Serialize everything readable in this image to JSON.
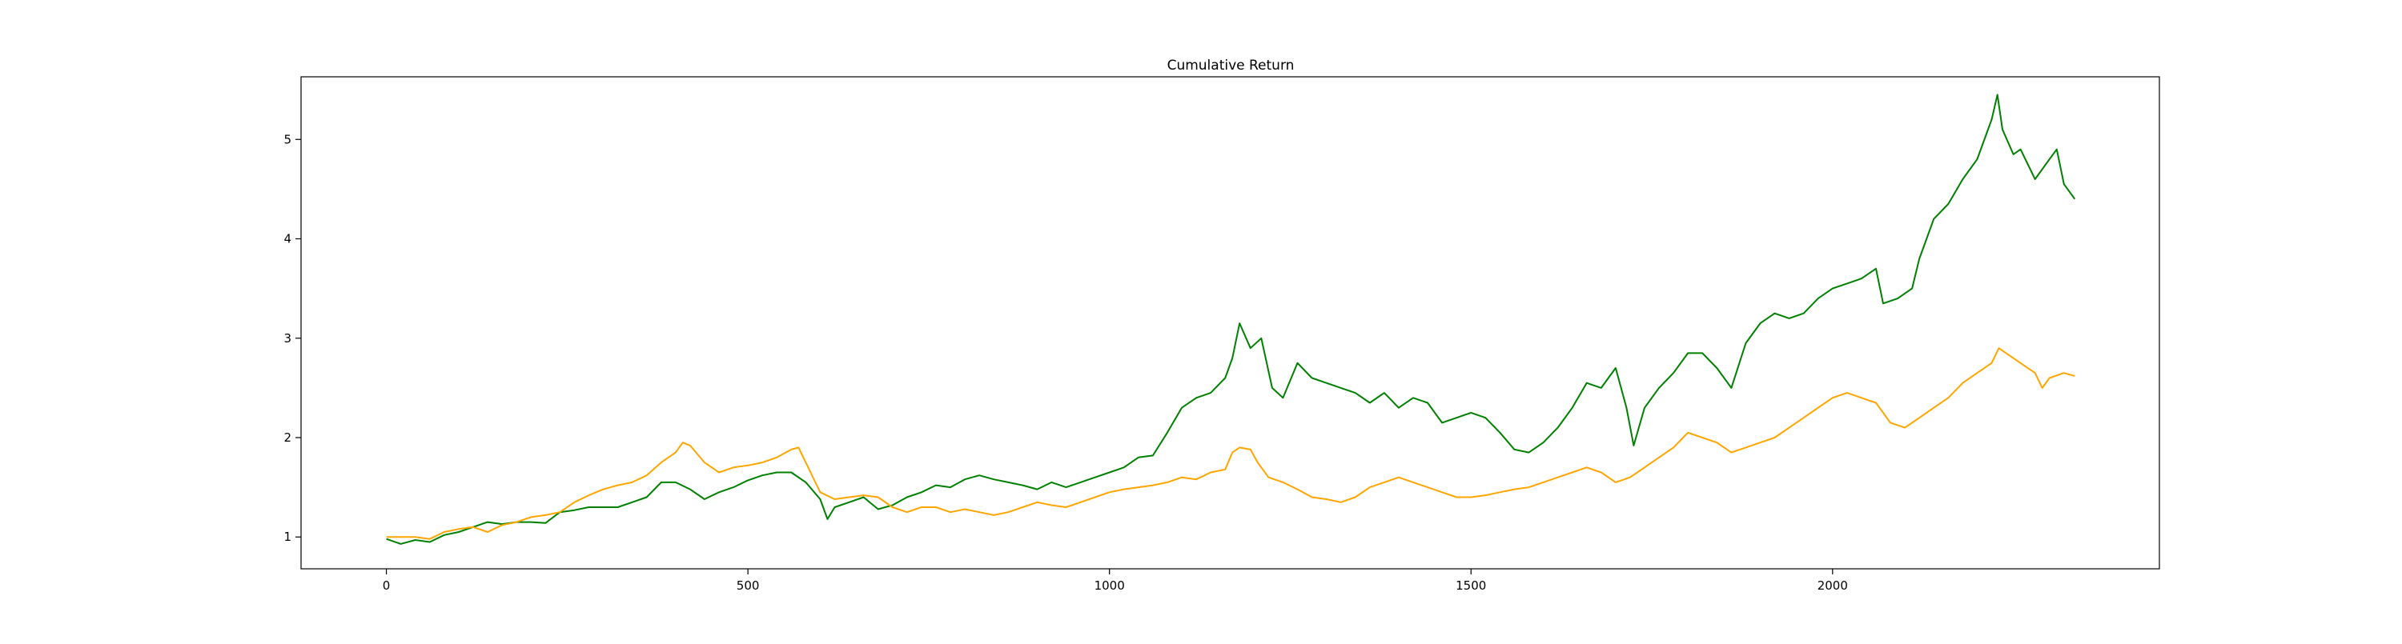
{
  "chart_data": {
    "type": "line",
    "title": "Cumulative Return",
    "xlabel": "",
    "ylabel": "",
    "xlim": [
      -118,
      2452
    ],
    "ylim": [
      0.68,
      5.63
    ],
    "xticks": [
      0,
      500,
      1000,
      1500,
      2000
    ],
    "yticks": [
      1,
      2,
      3,
      4,
      5
    ],
    "grid": false,
    "legend": "none",
    "series": [
      {
        "color": "#008000",
        "points": [
          [
            0,
            0.98
          ],
          [
            20,
            0.93
          ],
          [
            40,
            0.97
          ],
          [
            60,
            0.95
          ],
          [
            80,
            1.02
          ],
          [
            100,
            1.05
          ],
          [
            120,
            1.1
          ],
          [
            140,
            1.15
          ],
          [
            160,
            1.13
          ],
          [
            180,
            1.15
          ],
          [
            200,
            1.15
          ],
          [
            220,
            1.14
          ],
          [
            240,
            1.25
          ],
          [
            260,
            1.27
          ],
          [
            280,
            1.3
          ],
          [
            300,
            1.3
          ],
          [
            320,
            1.3
          ],
          [
            340,
            1.35
          ],
          [
            360,
            1.4
          ],
          [
            380,
            1.55
          ],
          [
            400,
            1.55
          ],
          [
            420,
            1.48
          ],
          [
            440,
            1.38
          ],
          [
            460,
            1.45
          ],
          [
            480,
            1.5
          ],
          [
            500,
            1.57
          ],
          [
            520,
            1.62
          ],
          [
            540,
            1.65
          ],
          [
            560,
            1.65
          ],
          [
            580,
            1.55
          ],
          [
            600,
            1.38
          ],
          [
            610,
            1.18
          ],
          [
            620,
            1.3
          ],
          [
            640,
            1.35
          ],
          [
            660,
            1.4
          ],
          [
            680,
            1.28
          ],
          [
            700,
            1.32
          ],
          [
            720,
            1.4
          ],
          [
            740,
            1.45
          ],
          [
            760,
            1.52
          ],
          [
            780,
            1.5
          ],
          [
            800,
            1.58
          ],
          [
            820,
            1.62
          ],
          [
            840,
            1.58
          ],
          [
            860,
            1.55
          ],
          [
            880,
            1.52
          ],
          [
            900,
            1.48
          ],
          [
            920,
            1.55
          ],
          [
            940,
            1.5
          ],
          [
            960,
            1.55
          ],
          [
            980,
            1.6
          ],
          [
            1000,
            1.65
          ],
          [
            1020,
            1.7
          ],
          [
            1040,
            1.8
          ],
          [
            1060,
            1.82
          ],
          [
            1080,
            2.05
          ],
          [
            1100,
            2.3
          ],
          [
            1120,
            2.4
          ],
          [
            1140,
            2.45
          ],
          [
            1160,
            2.6
          ],
          [
            1170,
            2.8
          ],
          [
            1180,
            3.15
          ],
          [
            1195,
            2.9
          ],
          [
            1210,
            3.0
          ],
          [
            1225,
            2.5
          ],
          [
            1240,
            2.4
          ],
          [
            1260,
            2.75
          ],
          [
            1280,
            2.6
          ],
          [
            1300,
            2.55
          ],
          [
            1320,
            2.5
          ],
          [
            1340,
            2.45
          ],
          [
            1360,
            2.35
          ],
          [
            1380,
            2.45
          ],
          [
            1400,
            2.3
          ],
          [
            1420,
            2.4
          ],
          [
            1440,
            2.35
          ],
          [
            1460,
            2.15
          ],
          [
            1480,
            2.2
          ],
          [
            1500,
            2.25
          ],
          [
            1520,
            2.2
          ],
          [
            1540,
            2.05
          ],
          [
            1560,
            1.88
          ],
          [
            1580,
            1.85
          ],
          [
            1600,
            1.95
          ],
          [
            1620,
            2.1
          ],
          [
            1640,
            2.3
          ],
          [
            1660,
            2.55
          ],
          [
            1680,
            2.5
          ],
          [
            1700,
            2.7
          ],
          [
            1715,
            2.3
          ],
          [
            1725,
            1.92
          ],
          [
            1740,
            2.3
          ],
          [
            1760,
            2.5
          ],
          [
            1780,
            2.65
          ],
          [
            1800,
            2.85
          ],
          [
            1820,
            2.85
          ],
          [
            1840,
            2.7
          ],
          [
            1860,
            2.5
          ],
          [
            1880,
            2.95
          ],
          [
            1900,
            3.15
          ],
          [
            1920,
            3.25
          ],
          [
            1940,
            3.2
          ],
          [
            1960,
            3.25
          ],
          [
            1980,
            3.4
          ],
          [
            2000,
            3.5
          ],
          [
            2020,
            3.55
          ],
          [
            2040,
            3.6
          ],
          [
            2060,
            3.7
          ],
          [
            2070,
            3.35
          ],
          [
            2090,
            3.4
          ],
          [
            2110,
            3.5
          ],
          [
            2120,
            3.8
          ],
          [
            2140,
            4.2
          ],
          [
            2160,
            4.35
          ],
          [
            2180,
            4.6
          ],
          [
            2200,
            4.8
          ],
          [
            2220,
            5.2
          ],
          [
            2228,
            5.45
          ],
          [
            2235,
            5.1
          ],
          [
            2250,
            4.85
          ],
          [
            2260,
            4.9
          ],
          [
            2280,
            4.6
          ],
          [
            2300,
            4.8
          ],
          [
            2310,
            4.9
          ],
          [
            2320,
            4.55
          ],
          [
            2330,
            4.45
          ],
          [
            2335,
            4.4
          ]
        ]
      },
      {
        "color": "#ffa500",
        "points": [
          [
            0,
            1.0
          ],
          [
            20,
            1.0
          ],
          [
            40,
            1.0
          ],
          [
            60,
            0.98
          ],
          [
            80,
            1.05
          ],
          [
            100,
            1.08
          ],
          [
            120,
            1.1
          ],
          [
            140,
            1.05
          ],
          [
            160,
            1.12
          ],
          [
            180,
            1.15
          ],
          [
            200,
            1.2
          ],
          [
            220,
            1.22
          ],
          [
            240,
            1.25
          ],
          [
            260,
            1.35
          ],
          [
            280,
            1.42
          ],
          [
            300,
            1.48
          ],
          [
            320,
            1.52
          ],
          [
            340,
            1.55
          ],
          [
            360,
            1.62
          ],
          [
            380,
            1.75
          ],
          [
            400,
            1.85
          ],
          [
            410,
            1.95
          ],
          [
            420,
            1.92
          ],
          [
            440,
            1.75
          ],
          [
            460,
            1.65
          ],
          [
            480,
            1.7
          ],
          [
            500,
            1.72
          ],
          [
            520,
            1.75
          ],
          [
            540,
            1.8
          ],
          [
            560,
            1.88
          ],
          [
            570,
            1.9
          ],
          [
            580,
            1.75
          ],
          [
            600,
            1.45
          ],
          [
            620,
            1.38
          ],
          [
            640,
            1.4
          ],
          [
            660,
            1.42
          ],
          [
            680,
            1.4
          ],
          [
            700,
            1.3
          ],
          [
            720,
            1.25
          ],
          [
            740,
            1.3
          ],
          [
            760,
            1.3
          ],
          [
            780,
            1.25
          ],
          [
            800,
            1.28
          ],
          [
            820,
            1.25
          ],
          [
            840,
            1.22
          ],
          [
            860,
            1.25
          ],
          [
            880,
            1.3
          ],
          [
            900,
            1.35
          ],
          [
            920,
            1.32
          ],
          [
            940,
            1.3
          ],
          [
            960,
            1.35
          ],
          [
            980,
            1.4
          ],
          [
            1000,
            1.45
          ],
          [
            1020,
            1.48
          ],
          [
            1040,
            1.5
          ],
          [
            1060,
            1.52
          ],
          [
            1080,
            1.55
          ],
          [
            1100,
            1.6
          ],
          [
            1120,
            1.58
          ],
          [
            1140,
            1.65
          ],
          [
            1160,
            1.68
          ],
          [
            1170,
            1.85
          ],
          [
            1180,
            1.9
          ],
          [
            1195,
            1.88
          ],
          [
            1205,
            1.75
          ],
          [
            1220,
            1.6
          ],
          [
            1240,
            1.55
          ],
          [
            1260,
            1.48
          ],
          [
            1280,
            1.4
          ],
          [
            1300,
            1.38
          ],
          [
            1320,
            1.35
          ],
          [
            1340,
            1.4
          ],
          [
            1360,
            1.5
          ],
          [
            1380,
            1.55
          ],
          [
            1400,
            1.6
          ],
          [
            1420,
            1.55
          ],
          [
            1440,
            1.5
          ],
          [
            1460,
            1.45
          ],
          [
            1480,
            1.4
          ],
          [
            1500,
            1.4
          ],
          [
            1520,
            1.42
          ],
          [
            1540,
            1.45
          ],
          [
            1560,
            1.48
          ],
          [
            1580,
            1.5
          ],
          [
            1600,
            1.55
          ],
          [
            1620,
            1.6
          ],
          [
            1640,
            1.65
          ],
          [
            1660,
            1.7
          ],
          [
            1680,
            1.65
          ],
          [
            1700,
            1.55
          ],
          [
            1720,
            1.6
          ],
          [
            1740,
            1.7
          ],
          [
            1760,
            1.8
          ],
          [
            1780,
            1.9
          ],
          [
            1800,
            2.05
          ],
          [
            1820,
            2.0
          ],
          [
            1840,
            1.95
          ],
          [
            1860,
            1.85
          ],
          [
            1880,
            1.9
          ],
          [
            1900,
            1.95
          ],
          [
            1920,
            2.0
          ],
          [
            1940,
            2.1
          ],
          [
            1960,
            2.2
          ],
          [
            1980,
            2.3
          ],
          [
            2000,
            2.4
          ],
          [
            2020,
            2.45
          ],
          [
            2040,
            2.4
          ],
          [
            2060,
            2.35
          ],
          [
            2080,
            2.15
          ],
          [
            2100,
            2.1
          ],
          [
            2120,
            2.2
          ],
          [
            2140,
            2.3
          ],
          [
            2160,
            2.4
          ],
          [
            2180,
            2.55
          ],
          [
            2200,
            2.65
          ],
          [
            2220,
            2.75
          ],
          [
            2230,
            2.9
          ],
          [
            2240,
            2.85
          ],
          [
            2260,
            2.75
          ],
          [
            2280,
            2.65
          ],
          [
            2290,
            2.5
          ],
          [
            2300,
            2.6
          ],
          [
            2320,
            2.65
          ],
          [
            2335,
            2.62
          ]
        ]
      }
    ]
  }
}
